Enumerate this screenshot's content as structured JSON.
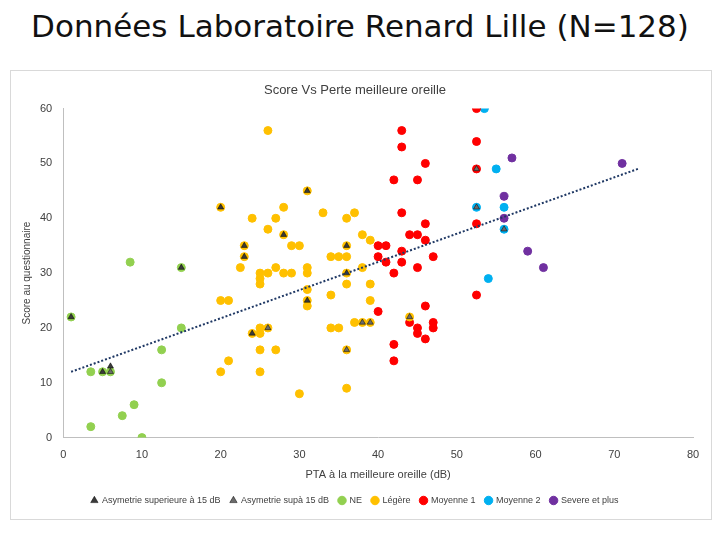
{
  "heading": "Données Laboratoire Renard Lille (N=128)",
  "chart_data": {
    "type": "scatter",
    "title": "Score Vs Perte meilleure oreille",
    "x_label": "PTA à la meilleure oreille (dB)",
    "y_label": "Score au questionnaire",
    "xlim": [
      0,
      80
    ],
    "xticks": [
      0,
      10,
      20,
      30,
      40,
      50,
      60,
      70,
      80
    ],
    "ylim": [
      0,
      60
    ],
    "yticks": [
      0,
      10,
      20,
      30,
      40,
      50,
      60
    ],
    "grid": false,
    "legend": "bottom",
    "series": [
      {
        "name": "NE",
        "color": "#92d050",
        "marker": "circle",
        "x": [
          1,
          3.5,
          5,
          6,
          3.5,
          7.5,
          9,
          10,
          8.5,
          12.5,
          12.5,
          15,
          15
        ],
        "values": [
          22,
          12,
          12,
          12,
          2,
          4,
          6,
          0,
          32,
          16,
          10,
          20,
          31
        ]
      },
      {
        "name": "Légère",
        "color": "#ffc000",
        "marker": "circle",
        "x": [
          20,
          23,
          23,
          22.5,
          24,
          26,
          26,
          26,
          25,
          25,
          25,
          27,
          28,
          28,
          29,
          27,
          28,
          31,
          31,
          31,
          31,
          31,
          31,
          33,
          34,
          34,
          35,
          34,
          36,
          36,
          36,
          36,
          36,
          36,
          36,
          37,
          38,
          38,
          38,
          39,
          39,
          39,
          39,
          37,
          20,
          21,
          20,
          21,
          24,
          25,
          25,
          25,
          25,
          26,
          27,
          30,
          29,
          30,
          44,
          35
        ],
        "values": [
          42,
          35,
          33,
          31,
          40,
          56,
          38,
          30,
          30,
          29,
          28,
          40,
          37,
          42,
          35,
          31,
          30,
          45,
          31,
          30,
          27,
          25,
          24,
          41,
          26,
          33,
          20,
          20,
          40,
          35,
          33,
          30,
          28,
          16,
          9,
          41,
          37,
          31,
          21,
          25,
          36,
          21,
          28,
          21,
          25,
          25,
          12,
          14,
          19,
          20,
          19,
          16,
          12,
          20,
          16,
          8,
          30,
          35,
          22,
          33
        ]
      },
      {
        "name": "Moyenne 1",
        "color": "#ff0000",
        "marker": "circle",
        "x": [
          43,
          43,
          46,
          52.5,
          52.5,
          52.5,
          42,
          45,
          43,
          46,
          44,
          45,
          52.5,
          40,
          41,
          40,
          41,
          42,
          43,
          43,
          45,
          46,
          47,
          44,
          45,
          45,
          46,
          46,
          47,
          47,
          40,
          42,
          42,
          52.5
        ],
        "values": [
          56,
          53,
          50,
          60,
          54,
          49,
          47,
          47,
          41,
          39,
          37,
          37,
          39,
          35,
          35,
          33,
          32,
          30,
          34,
          32,
          31,
          36,
          33,
          21,
          20,
          19,
          24,
          18,
          20,
          21,
          23,
          17,
          14,
          26
        ]
      },
      {
        "name": "Moyenne 2",
        "color": "#00b0f0",
        "marker": "circle",
        "x": [
          52.5,
          53.5,
          55,
          56,
          56,
          54
        ],
        "values": [
          42,
          60,
          49,
          42,
          38,
          29
        ]
      },
      {
        "name": "Severe et plus",
        "color": "#7030a0",
        "marker": "circle",
        "x": [
          57,
          56,
          56,
          59,
          61,
          71
        ],
        "values": [
          51,
          44,
          40,
          34,
          31,
          50
        ]
      },
      {
        "name": "Asymetrie superieure à 15 dB",
        "color": "#3a3a3a",
        "marker": "triangle",
        "x": [
          1,
          5,
          6,
          15,
          20,
          23,
          23,
          28,
          31,
          31,
          36,
          36,
          24
        ],
        "values": [
          22,
          12,
          13,
          31,
          42,
          35,
          33,
          37,
          45,
          25,
          35,
          30,
          19
        ]
      },
      {
        "name": "Asymetrie supà 15 dB",
        "color": "#6b6b6b",
        "marker": "triangle",
        "x": [
          26,
          36,
          38,
          39,
          44,
          52.5,
          52.5,
          56,
          6
        ],
        "values": [
          20,
          16,
          21,
          21,
          22,
          49,
          42,
          38,
          12
        ]
      },
      {
        "type": "line",
        "color": "#1f3864",
        "line_style": "dotted",
        "x": [
          1,
          73
        ],
        "values": [
          12,
          49
        ]
      }
    ]
  }
}
